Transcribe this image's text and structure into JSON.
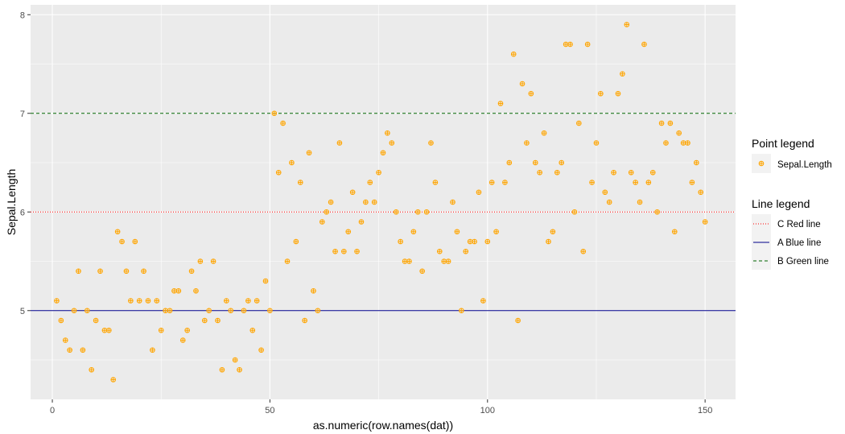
{
  "chart_data": {
    "type": "scatter",
    "xlabel": "as.numeric(row.names(dat))",
    "ylabel": "Sepal.Length",
    "xlim": [
      -5,
      157
    ],
    "ylim": [
      4.1,
      8.1
    ],
    "x_ticks": [
      0,
      50,
      100,
      150
    ],
    "y_ticks": [
      5,
      6,
      7,
      8
    ],
    "x_tick_labels": [
      "0",
      "50",
      "100",
      "150"
    ],
    "y_tick_labels": [
      "5",
      "6",
      "7",
      "8"
    ],
    "grid": true,
    "legend_placement": "right",
    "series": [
      {
        "name": "Sepal.Length",
        "color": "#FFA500",
        "marker": "crossed-circle",
        "x": [
          1,
          2,
          3,
          4,
          5,
          6,
          7,
          8,
          9,
          10,
          11,
          12,
          13,
          14,
          15,
          16,
          17,
          18,
          19,
          20,
          21,
          22,
          23,
          24,
          25,
          26,
          27,
          28,
          29,
          30,
          31,
          32,
          33,
          34,
          35,
          36,
          37,
          38,
          39,
          40,
          41,
          42,
          43,
          44,
          45,
          46,
          47,
          48,
          49,
          50,
          51,
          52,
          53,
          54,
          55,
          56,
          57,
          58,
          59,
          60,
          61,
          62,
          63,
          64,
          65,
          66,
          67,
          68,
          69,
          70,
          71,
          72,
          73,
          74,
          75,
          76,
          77,
          78,
          79,
          80,
          81,
          82,
          83,
          84,
          85,
          86,
          87,
          88,
          89,
          90,
          91,
          92,
          93,
          94,
          95,
          96,
          97,
          98,
          99,
          100,
          101,
          102,
          103,
          104,
          105,
          106,
          107,
          108,
          109,
          110,
          111,
          112,
          113,
          114,
          115,
          116,
          117,
          118,
          119,
          120,
          121,
          122,
          123,
          124,
          125,
          126,
          127,
          128,
          129,
          130,
          131,
          132,
          133,
          134,
          135,
          136,
          137,
          138,
          139,
          140,
          141,
          142,
          143,
          144,
          145,
          146,
          147,
          148,
          149,
          150
        ],
        "y": [
          5.1,
          4.9,
          4.7,
          4.6,
          5.0,
          5.4,
          4.6,
          5.0,
          4.4,
          4.9,
          5.4,
          4.8,
          4.8,
          4.3,
          5.8,
          5.7,
          5.4,
          5.1,
          5.7,
          5.1,
          5.4,
          5.1,
          4.6,
          5.1,
          4.8,
          5.0,
          5.0,
          5.2,
          5.2,
          4.7,
          4.8,
          5.4,
          5.2,
          5.5,
          4.9,
          5.0,
          5.5,
          4.9,
          4.4,
          5.1,
          5.0,
          4.5,
          4.4,
          5.0,
          5.1,
          4.8,
          5.1,
          4.6,
          5.3,
          5.0,
          7.0,
          6.4,
          6.9,
          5.5,
          6.5,
          5.7,
          6.3,
          4.9,
          6.6,
          5.2,
          5.0,
          5.9,
          6.0,
          6.1,
          5.6,
          6.7,
          5.6,
          5.8,
          6.2,
          5.6,
          5.9,
          6.1,
          6.3,
          6.1,
          6.4,
          6.6,
          6.8,
          6.7,
          6.0,
          5.7,
          5.5,
          5.5,
          5.8,
          6.0,
          5.4,
          6.0,
          6.7,
          6.3,
          5.6,
          5.5,
          5.5,
          6.1,
          5.8,
          5.0,
          5.6,
          5.7,
          5.7,
          6.2,
          5.1,
          5.7,
          6.3,
          5.8,
          7.1,
          6.3,
          6.5,
          7.6,
          4.9,
          7.3,
          6.7,
          7.2,
          6.5,
          6.4,
          6.8,
          5.7,
          5.8,
          6.4,
          6.5,
          7.7,
          7.7,
          6.0,
          6.9,
          5.6,
          7.7,
          6.3,
          6.7,
          7.2,
          6.2,
          6.1,
          6.4,
          7.2,
          7.4,
          7.9,
          6.4,
          6.3,
          6.1,
          7.7,
          6.3,
          6.4,
          6.0,
          6.9,
          6.7,
          6.9,
          5.8,
          6.8,
          6.7,
          6.7,
          6.3,
          6.5,
          6.2,
          5.9
        ]
      }
    ],
    "hlines": [
      {
        "name": "C Red line",
        "y": 6,
        "color": "#FF0000",
        "dash": "dotted"
      },
      {
        "name": "A Blue line",
        "y": 5,
        "color": "#00008B",
        "dash": "solid"
      },
      {
        "name": "B Green line",
        "y": 7,
        "color": "#006400",
        "dash": "dashed"
      }
    ],
    "legends": [
      {
        "title": "Point legend",
        "entries": [
          "Sepal.Length"
        ]
      },
      {
        "title": "Line legend",
        "entries": [
          "C Red line",
          "A Blue line",
          "B Green line"
        ]
      }
    ],
    "panel_background": "#EBEBEB",
    "grid_color": "#FFFFFF"
  }
}
